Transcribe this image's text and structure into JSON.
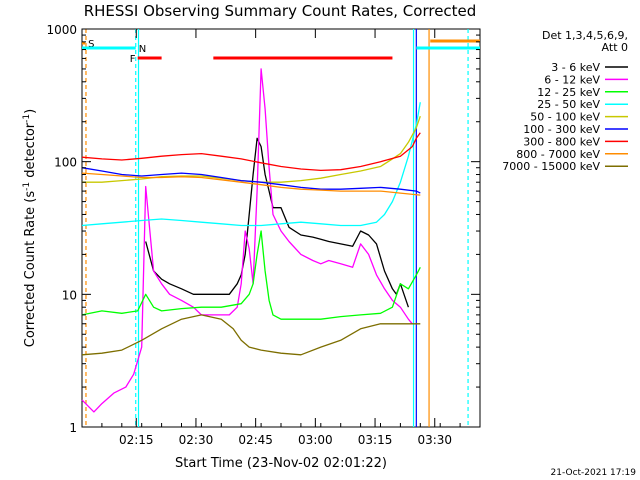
{
  "chart_data": {
    "type": "line",
    "title": "RHESSI Observing Summary Count Rates, Corrected",
    "xlabel": "Start Time (23-Nov-02 02:01:22)",
    "ylabel_main": "Corrected Count Rate (s",
    "ylabel_sup1": "-1",
    "ylabel_mid": " detector",
    "ylabel_sup2": "-1",
    "ylabel_end": ")",
    "yscale": "log",
    "ylim": [
      1,
      1000
    ],
    "xlim_minutes": [
      0,
      100
    ],
    "x_ticks": [
      {
        "label": "02:15",
        "min": 13.63
      },
      {
        "label": "02:30",
        "min": 28.63
      },
      {
        "label": "02:45",
        "min": 43.63
      },
      {
        "label": "03:00",
        "min": 58.63
      },
      {
        "label": "03:15",
        "min": 73.63
      },
      {
        "label": "03:30",
        "min": 88.63
      }
    ],
    "y_ticks": [
      {
        "label": "1",
        "value": 1
      },
      {
        "label": "10",
        "value": 10
      },
      {
        "label": "100",
        "value": 100
      },
      {
        "label": "1000",
        "value": 1000
      }
    ],
    "legend_header": [
      "Det 1,3,4,5,6,9,",
      "Att 0"
    ],
    "legend_position": "right",
    "series": [
      {
        "name": "3 - 6 keV",
        "color": "#000000",
        "x": [
          0,
          5,
          12,
          15,
          16,
          18,
          20,
          22,
          25,
          28,
          30,
          34,
          37,
          39,
          40,
          41,
          42,
          43,
          44,
          45,
          46,
          47,
          48,
          50,
          52,
          55,
          58,
          60,
          62,
          65,
          68,
          70,
          72,
          74,
          76,
          78,
          79,
          80,
          82,
          85
        ],
        "y": [
          0,
          0,
          0,
          0,
          25,
          15,
          13,
          12,
          11,
          10,
          10,
          10,
          10,
          12,
          14,
          20,
          40,
          80,
          150,
          130,
          80,
          60,
          45,
          45,
          32,
          28,
          27,
          26,
          25,
          24,
          23,
          30,
          28,
          24,
          15,
          11,
          10,
          12,
          8,
          0
        ]
      },
      {
        "name": "6 - 12 keV",
        "color": "#ff00ff",
        "x": [
          0,
          3,
          5,
          8,
          11,
          13,
          15,
          16,
          18,
          20,
          22,
          25,
          28,
          30,
          34,
          37,
          39,
          40,
          41,
          42,
          43,
          44,
          45,
          46,
          47,
          48,
          50,
          52,
          55,
          58,
          60,
          62,
          65,
          68,
          70,
          72,
          74,
          76,
          78,
          80,
          82,
          83
        ],
        "y": [
          1.6,
          1.3,
          1.5,
          1.8,
          2.0,
          2.5,
          4,
          65,
          15,
          12,
          10,
          9,
          8,
          7,
          7,
          7,
          8,
          12,
          30,
          22,
          12,
          60,
          500,
          250,
          90,
          40,
          30,
          25,
          20,
          18,
          17,
          18,
          17,
          16,
          24,
          20,
          14,
          11,
          9,
          8,
          6.5,
          6
        ]
      },
      {
        "name": "12 - 25 keV",
        "color": "#00ff00",
        "x": [
          0,
          5,
          10,
          14,
          16,
          18,
          20,
          25,
          30,
          35,
          40,
          42,
          43,
          44,
          45,
          46,
          47,
          48,
          50,
          55,
          60,
          65,
          70,
          75,
          78,
          80,
          82,
          84,
          85
        ],
        "y": [
          7,
          7.5,
          7.2,
          7.5,
          10,
          8,
          7.5,
          7.8,
          8,
          8,
          8.5,
          10,
          12,
          20,
          30,
          15,
          9,
          7,
          6.5,
          6.5,
          6.5,
          6.8,
          7,
          7.2,
          8,
          12,
          11,
          14,
          16
        ]
      },
      {
        "name": "25 - 50 keV",
        "color": "#00ffff",
        "x": [
          0,
          5,
          10,
          15,
          20,
          25,
          30,
          35,
          40,
          45,
          50,
          55,
          60,
          65,
          70,
          74,
          76,
          78,
          80,
          82,
          84,
          85
        ],
        "y": [
          33,
          34,
          35,
          36,
          37,
          36,
          35,
          34,
          33,
          33,
          34,
          35,
          34,
          33,
          33,
          35,
          40,
          50,
          70,
          110,
          190,
          280
        ]
      },
      {
        "name": "50 - 100 keV",
        "color": "#c8c800",
        "x": [
          0,
          5,
          10,
          15,
          20,
          25,
          30,
          35,
          40,
          45,
          50,
          55,
          60,
          65,
          70,
          75,
          78,
          80,
          82,
          84,
          85
        ],
        "y": [
          70,
          70,
          72,
          74,
          77,
          78,
          78,
          75,
          72,
          70,
          70,
          72,
          75,
          80,
          85,
          92,
          105,
          115,
          140,
          180,
          220
        ]
      },
      {
        "name": "100 - 300 keV",
        "color": "#0000ff",
        "x": [
          0,
          5,
          10,
          15,
          20,
          25,
          30,
          35,
          40,
          45,
          50,
          55,
          60,
          65,
          70,
          75,
          80,
          84,
          85
        ],
        "y": [
          90,
          85,
          80,
          78,
          80,
          82,
          80,
          76,
          72,
          70,
          67,
          64,
          62,
          62,
          63,
          64,
          62,
          60,
          58
        ]
      },
      {
        "name": "300 - 800 keV",
        "color": "#ff0000",
        "x": [
          0,
          5,
          10,
          15,
          20,
          25,
          30,
          35,
          40,
          45,
          50,
          55,
          60,
          65,
          70,
          75,
          80,
          83,
          84,
          85
        ],
        "y": [
          108,
          105,
          103,
          106,
          110,
          113,
          115,
          110,
          105,
          98,
          92,
          88,
          86,
          87,
          92,
          100,
          110,
          130,
          150,
          165
        ]
      },
      {
        "name": "800 - 7000 keV",
        "color": "#ff8c00",
        "x": [
          0,
          5,
          10,
          15,
          20,
          25,
          30,
          35,
          40,
          45,
          50,
          55,
          60,
          65,
          70,
          75,
          80,
          85
        ],
        "y": [
          82,
          80,
          78,
          76,
          76,
          77,
          76,
          73,
          70,
          67,
          64,
          62,
          61,
          60,
          60,
          60,
          58,
          56
        ]
      },
      {
        "name": "7000 - 15000 keV",
        "color": "#7d6e00",
        "x": [
          0,
          5,
          10,
          15,
          20,
          25,
          30,
          35,
          38,
          40,
          42,
          45,
          50,
          55,
          60,
          65,
          70,
          75,
          80,
          85
        ],
        "y": [
          3.5,
          3.6,
          3.8,
          4.5,
          5.5,
          6.5,
          7,
          6.5,
          5.5,
          4.5,
          4,
          3.8,
          3.6,
          3.5,
          4,
          4.5,
          5.5,
          6,
          6,
          6
        ]
      }
    ],
    "flags": [
      {
        "label": "S",
        "color": "#ff8c00",
        "start_min": 0,
        "end_min": 0.8
      },
      {
        "label": "N",
        "color": "#00ffff",
        "start_min": 0,
        "end_min": 13.5
      },
      {
        "label": "F",
        "color": "#ff0000",
        "start_min": 14,
        "end_min": 20
      },
      {
        "label": "",
        "color": "#ff0000",
        "start_min": 33,
        "end_min": 78
      },
      {
        "label": "",
        "color": "#ff8c00",
        "start_min": 87.5,
        "end_min": 100
      },
      {
        "label": "",
        "color": "#00ffff",
        "start_min": 84,
        "end_min": 100
      }
    ],
    "vlines": [
      {
        "min": 1.0,
        "color": "#ff8c00",
        "dash": "4,3"
      },
      {
        "min": 13.5,
        "color": "#00ffff",
        "dash": "4,3"
      },
      {
        "min": 14.2,
        "color": "#00ffff",
        "dash": ""
      },
      {
        "min": 83.3,
        "color": "#00ffff",
        "dash": ""
      },
      {
        "min": 84.0,
        "color": "#0000ff",
        "dash": ""
      },
      {
        "min": 87.2,
        "color": "#ff8c00",
        "dash": ""
      },
      {
        "min": 97.0,
        "color": "#00ffff",
        "dash": "4,3"
      }
    ],
    "timestamp": "21-Oct-2021 17:19"
  }
}
